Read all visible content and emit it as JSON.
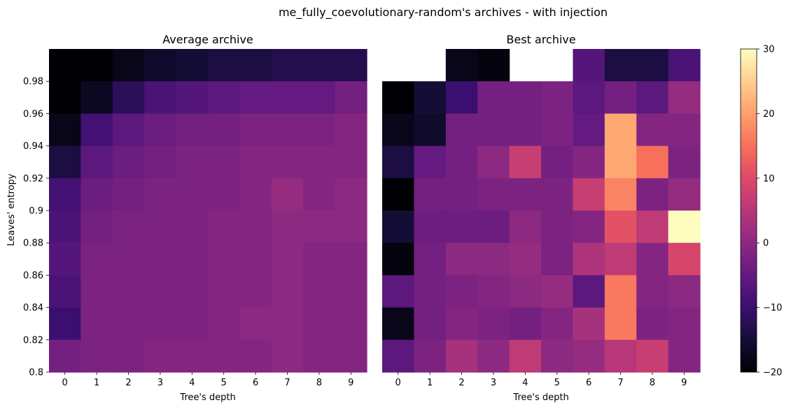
{
  "suptitle": "me_fully_coevolutionary-random's archives - with injection",
  "colorbar": {
    "vmin": -20,
    "vmax": 30,
    "ticks": [
      -20,
      -10,
      0,
      10,
      20,
      30
    ],
    "tick_labels": [
      "−20",
      "−10",
      "0",
      "10",
      "20",
      "30"
    ],
    "colormap": "magma"
  },
  "chart_data": [
    {
      "type": "heatmap",
      "title": "Average archive",
      "xlabel": "Tree's depth",
      "ylabel": "Leaves' entropy",
      "x_categories": [
        "0",
        "1",
        "2",
        "3",
        "4",
        "5",
        "6",
        "7",
        "8",
        "9"
      ],
      "y_tick_labels": [
        "0.98",
        "0.96",
        "0.94",
        "0.92",
        "0.9",
        "0.88",
        "0.86",
        "0.84",
        "0.82",
        "0.8"
      ],
      "rows_top_to_bottom": [
        [
          -20,
          -20,
          -18,
          -16,
          -15,
          -14,
          -14,
          -13,
          -13,
          -13
        ],
        [
          -20,
          -17,
          -12,
          -8,
          -7,
          -6,
          -5,
          -5,
          -5,
          -3
        ],
        [
          -18,
          -9,
          -6,
          -4,
          -3,
          -3,
          -2,
          -2,
          -2,
          -1
        ],
        [
          -14,
          -6,
          -4,
          -3,
          -2,
          -2,
          -1,
          -1,
          -1,
          -1
        ],
        [
          -9,
          -4,
          -3,
          -2,
          -2,
          -2,
          -1,
          1,
          -1,
          0
        ],
        [
          -8,
          -3,
          -2,
          -2,
          -2,
          -1,
          -1,
          0,
          0,
          0
        ],
        [
          -7,
          -2,
          -2,
          -2,
          -2,
          -1,
          -1,
          0,
          -1,
          -1
        ],
        [
          -8,
          -2,
          -2,
          -2,
          -2,
          -1,
          -1,
          0,
          -1,
          -1
        ],
        [
          -10,
          -2,
          -2,
          -2,
          -2,
          -1,
          0,
          0,
          -1,
          -1
        ],
        [
          -3,
          -2,
          -2,
          -1,
          -1,
          -1,
          -1,
          0,
          -1,
          -1
        ]
      ]
    },
    {
      "type": "heatmap",
      "title": "Best archive",
      "xlabel": "Tree's depth",
      "x_categories": [
        "0",
        "1",
        "2",
        "3",
        "4",
        "5",
        "6",
        "7",
        "8",
        "9"
      ],
      "rows_top_to_bottom": [
        [
          null,
          null,
          -18,
          -19,
          null,
          null,
          -7,
          -14,
          -14,
          -8
        ],
        [
          -20,
          -15,
          -10,
          -3,
          -3,
          -2,
          -6,
          -3,
          -6,
          1
        ],
        [
          -18,
          -16,
          -3,
          -3,
          -3,
          -2,
          -5,
          21,
          -1,
          -1
        ],
        [
          -14,
          -5,
          -3,
          0,
          7,
          -3,
          -1,
          21,
          15,
          -2
        ],
        [
          -20,
          -3,
          -3,
          -2,
          -2,
          -2,
          7,
          17,
          -2,
          1
        ],
        [
          -15,
          -4,
          -4,
          -4,
          0,
          -2,
          -1,
          11,
          6,
          30
        ],
        [
          -19,
          -3,
          0,
          0,
          1,
          -2,
          4,
          6,
          -1,
          9
        ],
        [
          -6,
          -3,
          -2,
          -1,
          0,
          1,
          -6,
          16,
          -1,
          0
        ],
        [
          -18,
          -3,
          -1,
          -2,
          -3,
          -1,
          3,
          16,
          -2,
          -1
        ],
        [
          -6,
          -2,
          3,
          0,
          6,
          0,
          1,
          5,
          7,
          -1
        ]
      ]
    }
  ]
}
